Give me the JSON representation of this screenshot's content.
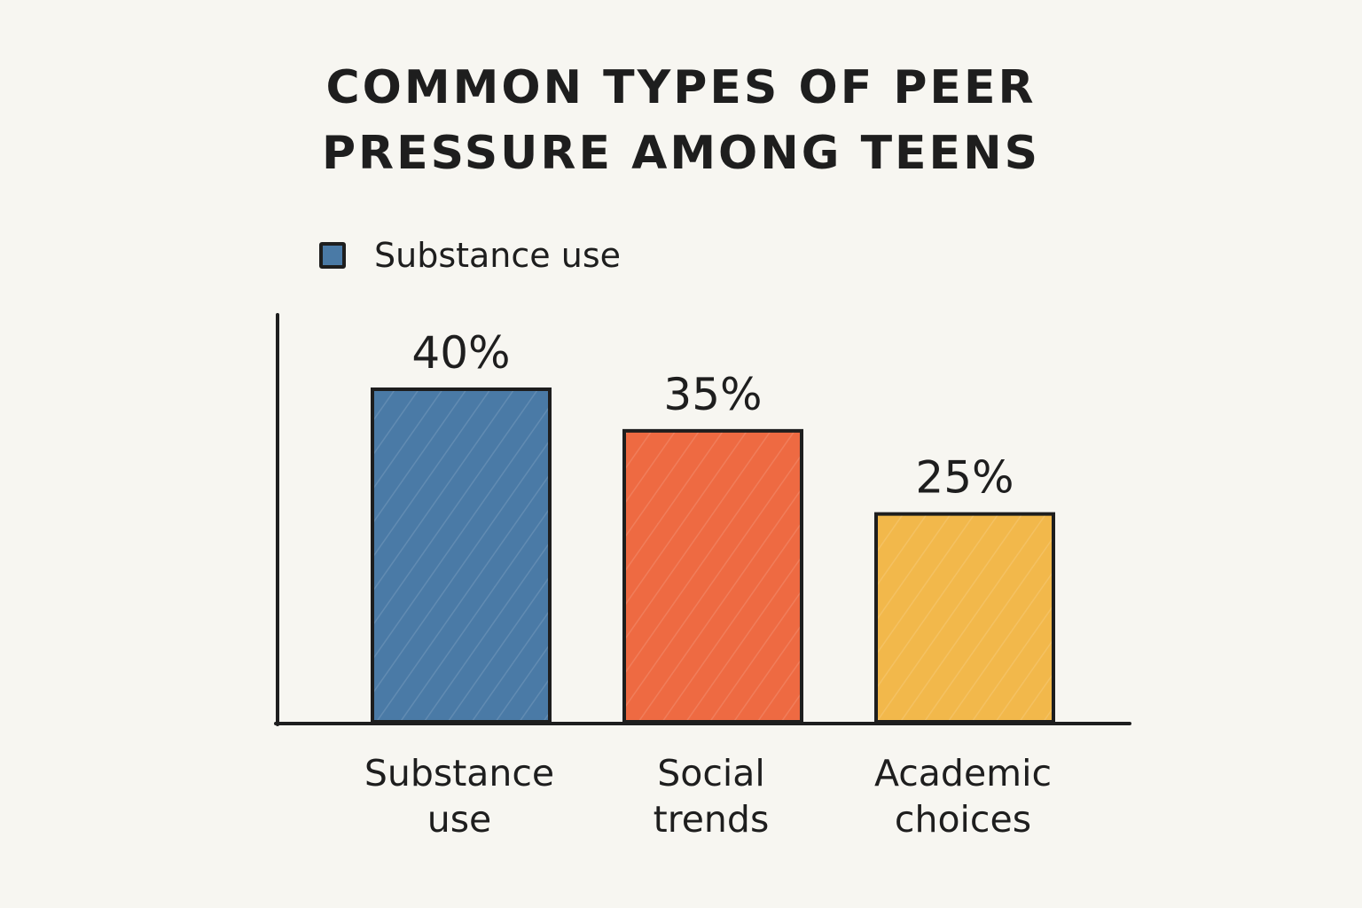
{
  "chart_data": {
    "type": "bar",
    "title_lines": [
      "COMMON TYPES OF PEER",
      "PRESSURE AMONG TEENS"
    ],
    "legend": [
      {
        "label": "Substance use",
        "color": "#4a7aa6"
      }
    ],
    "legend_placement": "top-left",
    "categories": [
      {
        "lines": [
          "Substance",
          "use"
        ]
      },
      {
        "lines": [
          "Social",
          "trends"
        ]
      },
      {
        "lines": [
          "Academic",
          "choices"
        ]
      }
    ],
    "values": [
      40,
      35,
      25
    ],
    "value_labels": [
      "40%",
      "35%",
      "25%"
    ],
    "colors": [
      "#4a7aa6",
      "#ee6a42",
      "#f2b84b"
    ],
    "ylim": [
      0,
      50
    ],
    "grid": false,
    "y_ticks": false
  }
}
